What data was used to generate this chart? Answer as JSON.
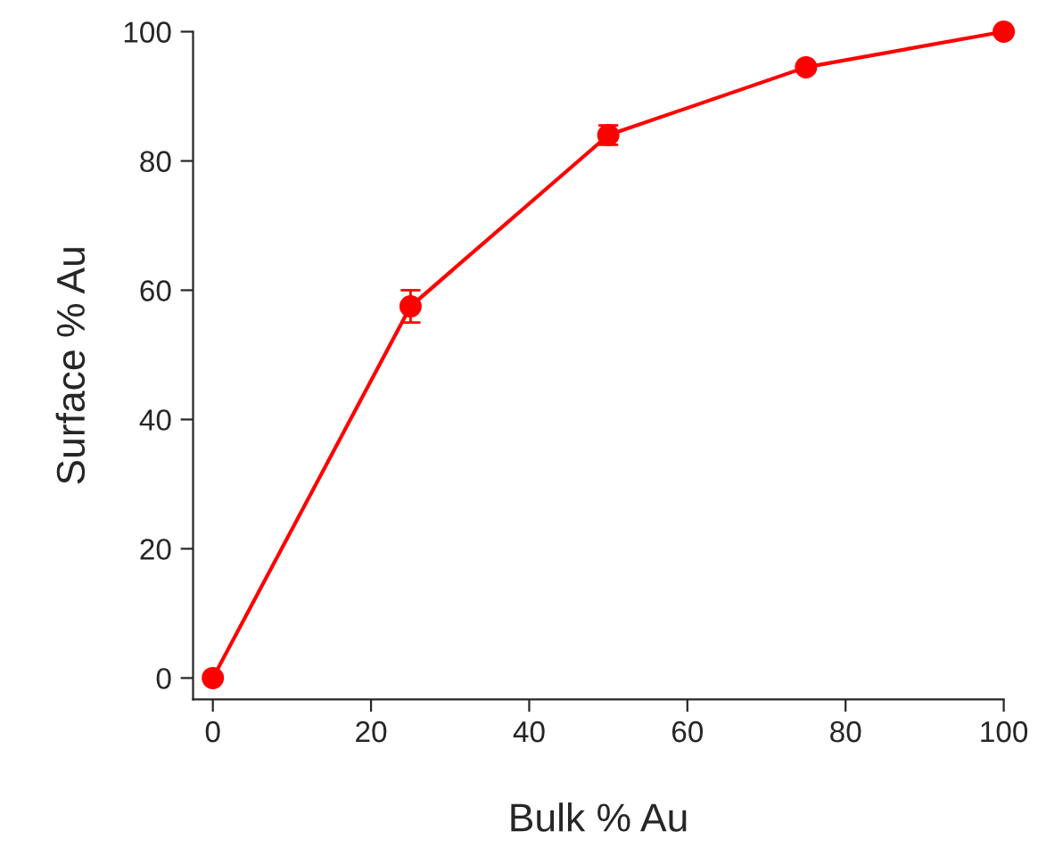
{
  "chart_data": {
    "type": "line",
    "xlabel": "Bulk % Au",
    "ylabel": "Surface % Au",
    "x": [
      0,
      25,
      50,
      75,
      100
    ],
    "series": [
      {
        "color": "#ff0000",
        "values": [
          0,
          57.5,
          84,
          94.5,
          100
        ],
        "errors": [
          null,
          2.5,
          1.5,
          null,
          null
        ]
      }
    ],
    "xlim": [
      -2.5,
      100
    ],
    "ylim": [
      -3.3,
      100
    ],
    "xticks": [
      0,
      20,
      40,
      60,
      80,
      100
    ],
    "yticks": [
      0,
      20,
      40,
      60,
      80,
      100
    ],
    "marker": "circle",
    "line_style": "solid",
    "grid": false
  }
}
